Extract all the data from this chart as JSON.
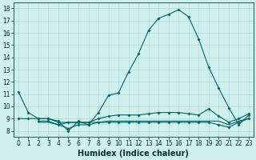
{
  "xlabel": "Humidex (Indice chaleur)",
  "bg_color": "#cff0ec",
  "line_color": "#006666",
  "grid_color": "#b0ddd8",
  "xlim": [
    -0.5,
    23.5
  ],
  "ylim": [
    7.5,
    18.5
  ],
  "yticks": [
    8,
    9,
    10,
    11,
    12,
    13,
    14,
    15,
    16,
    17,
    18
  ],
  "xticks": [
    0,
    1,
    2,
    3,
    4,
    5,
    6,
    7,
    8,
    9,
    10,
    11,
    12,
    13,
    14,
    15,
    16,
    17,
    18,
    19,
    20,
    21,
    22,
    23
  ],
  "line1_x": [
    0,
    1,
    2,
    3,
    4,
    5,
    6,
    7,
    8,
    9,
    10,
    11,
    12,
    13,
    14,
    15,
    16,
    17,
    18,
    19,
    20,
    21,
    22,
    23
  ],
  "line1_y": [
    11.2,
    9.5,
    9.0,
    9.0,
    8.8,
    8.0,
    8.8,
    8.5,
    9.5,
    10.9,
    11.1,
    12.8,
    14.3,
    16.2,
    17.2,
    17.5,
    17.9,
    17.3,
    15.5,
    13.2,
    11.5,
    9.9,
    8.5,
    9.3
  ],
  "line2_x": [
    0,
    1,
    2,
    3,
    4,
    5,
    6,
    7,
    8,
    9,
    10,
    11,
    12,
    13,
    14,
    15,
    16,
    17,
    18,
    19,
    20,
    21,
    22,
    23
  ],
  "line2_y": [
    9.0,
    9.0,
    9.0,
    9.0,
    8.7,
    8.7,
    8.7,
    8.7,
    9.0,
    9.2,
    9.3,
    9.3,
    9.3,
    9.4,
    9.5,
    9.5,
    9.5,
    9.4,
    9.3,
    9.8,
    9.2,
    8.7,
    9.0,
    9.4
  ],
  "line3_x": [
    2,
    3,
    4,
    5,
    6,
    7,
    8,
    9,
    10,
    11,
    12,
    13,
    14,
    15,
    16,
    17,
    18,
    19,
    20,
    21,
    22,
    23
  ],
  "line3_y": [
    8.8,
    8.8,
    8.5,
    8.2,
    8.5,
    8.5,
    8.7,
    8.7,
    8.7,
    8.7,
    8.7,
    8.7,
    8.7,
    8.7,
    8.7,
    8.7,
    8.7,
    8.7,
    8.5,
    8.3,
    8.7,
    9.0
  ],
  "line4_x": [
    2,
    3,
    4,
    5,
    6,
    7,
    8,
    9,
    10,
    11,
    12,
    13,
    14,
    15,
    16,
    17,
    18,
    19,
    20,
    21,
    22,
    23
  ],
  "line4_y": [
    8.7,
    8.7,
    8.5,
    8.7,
    8.7,
    8.7,
    8.7,
    8.8,
    8.8,
    8.8,
    8.8,
    8.8,
    8.8,
    8.8,
    8.8,
    8.8,
    8.8,
    8.8,
    8.8,
    8.5,
    8.8,
    9.0
  ],
  "title_fontsize": 7.0,
  "axis_fontsize": 7.0,
  "tick_fontsize": 5.5
}
